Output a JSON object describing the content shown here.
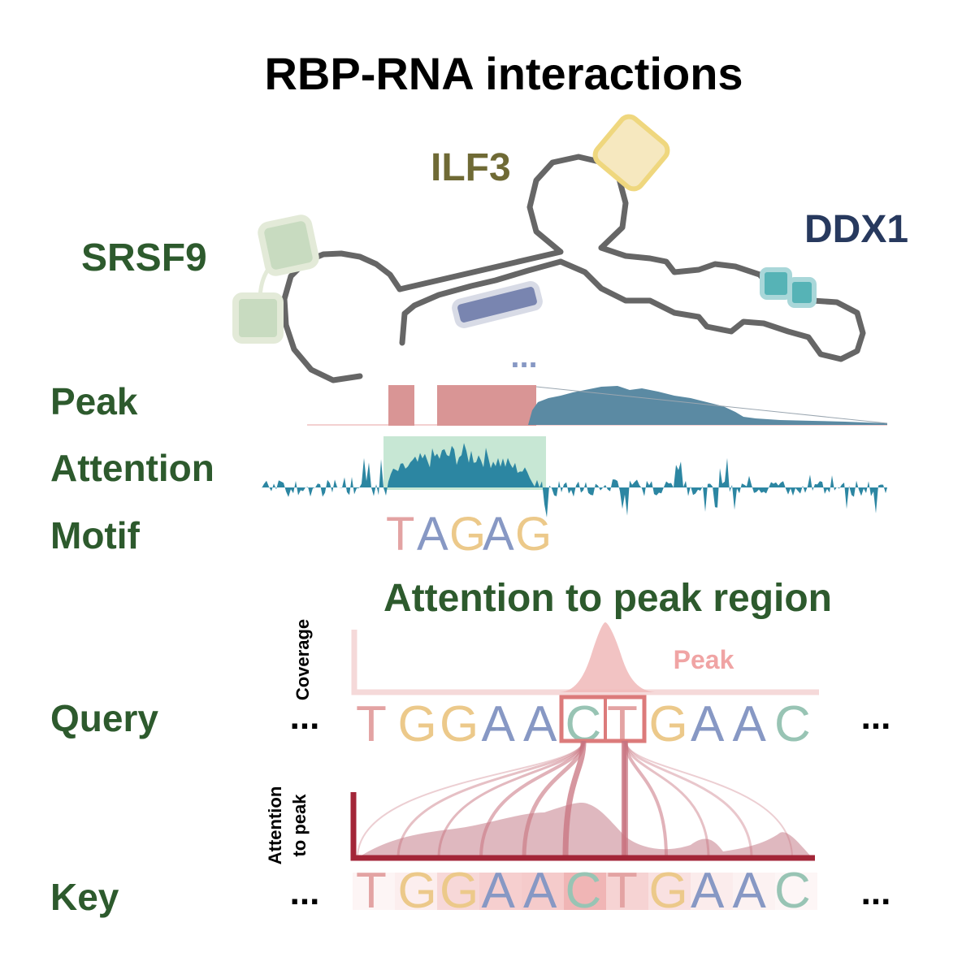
{
  "title": "RBP-RNA interactions",
  "proteins": {
    "srsf9": "SRSF9",
    "ilf3": "ILF3",
    "ddx1": "DDX1"
  },
  "ellipsis_rna": "...",
  "tracks": {
    "peak": "Peak",
    "attention": "Attention",
    "motif": "Motif"
  },
  "motif_letters": [
    {
      "ch": "T",
      "color": "#e3a3a3"
    },
    {
      "ch": "A",
      "color": "#8798c4"
    },
    {
      "ch": "G",
      "color": "#ecc98a"
    },
    {
      "ch": "A",
      "color": "#8798c4"
    },
    {
      "ch": "G",
      "color": "#ecc98a"
    }
  ],
  "section_title": "Attention to peak region",
  "coverage_label": "Coverage",
  "peak_label": "Peak",
  "attention_axis_label_line1": "Attention",
  "attention_axis_label_line2": "to peak",
  "query_label": "Query",
  "key_label": "Key",
  "ellipsis": "...",
  "sequence_letters": [
    {
      "ch": "T",
      "color": "#e3a3a3"
    },
    {
      "ch": "G",
      "color": "#ecc98a"
    },
    {
      "ch": "G",
      "color": "#ecc98a"
    },
    {
      "ch": "A",
      "color": "#8798c4"
    },
    {
      "ch": "A",
      "color": "#8798c4"
    },
    {
      "ch": "C",
      "color": "#98c4b4"
    },
    {
      "ch": "T",
      "color": "#e3a3a3"
    },
    {
      "ch": "G",
      "color": "#ecc98a"
    },
    {
      "ch": "A",
      "color": "#8798c4"
    },
    {
      "ch": "A",
      "color": "#8798c4"
    },
    {
      "ch": "C",
      "color": "#98c4b4"
    }
  ],
  "key_attention_levels": [
    0.12,
    0.2,
    0.45,
    0.55,
    0.6,
    0.85,
    0.5,
    0.35,
    0.22,
    0.15,
    0.1
  ],
  "colors": {
    "track_label": "#2d5a2d",
    "ilf3_label": "#6f6a35",
    "ddx1_label": "#27395e",
    "rna_line": "#666666",
    "peak_bar": "#d99595",
    "peak_area": "#5b8aa3",
    "attention": "#2c86a2",
    "attention_window": "#bde3cc",
    "coverage": "#f0b8b8",
    "key_axis": "#a32638"
  }
}
